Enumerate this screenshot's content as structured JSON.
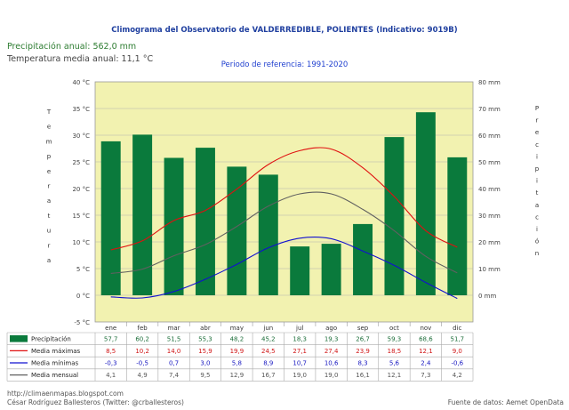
{
  "header": {
    "title": "Climograma del Observatorio de VALDERREDIBLE, POLIENTES (Indicativo: 9019B)",
    "annual_precip": "Precipitación anual: 562,0 mm",
    "annual_temp": "Temperatura media anual: 11,1 °C",
    "reference_period": "Periodo de referencia: 1991-2020"
  },
  "footer": {
    "blog": "http://climaenmapas.blogspot.com",
    "author": "César Rodríguez Ballesteros (Twitter: @crballesteros)",
    "source": "Fuente de datos: Aemet OpenData"
  },
  "colors": {
    "plot_bg": "#f2f2b0",
    "precip": "#0a7a3c",
    "tmax": "#e01010",
    "tmin": "#1010d0",
    "tmean": "#606060",
    "grid": "#b0b0b0"
  },
  "chart_data": {
    "type": "bar+line",
    "grid": true,
    "categories": [
      "ene",
      "feb",
      "mar",
      "abr",
      "may",
      "jun",
      "jul",
      "ago",
      "sep",
      "oct",
      "nov",
      "dic"
    ],
    "y_left": {
      "label": "Temperatura",
      "ylim": [
        -5,
        40
      ],
      "ticks": [
        "-5 °C",
        "0 °C",
        "5 °C",
        "10 °C",
        "15 °C",
        "20 °C",
        "25 °C",
        "30 °C",
        "35 °C",
        "40 °C"
      ]
    },
    "y_right": {
      "label": "Precipitación",
      "ylim": [
        -10,
        80
      ],
      "ticks": [
        "0 mm",
        "10 mm",
        "20 mm",
        "30 mm",
        "40 mm",
        "50 mm",
        "60 mm",
        "70 mm",
        "80 mm"
      ]
    },
    "series": [
      {
        "name": "Precipitación",
        "type": "bar",
        "axis": "right",
        "values": [
          57.7,
          60.2,
          51.5,
          55.3,
          48.2,
          45.2,
          18.3,
          19.3,
          26.7,
          59.3,
          68.6,
          51.7
        ],
        "labels": [
          "57,7",
          "60,2",
          "51,5",
          "55,3",
          "48,2",
          "45,2",
          "18,3",
          "19,3",
          "26,7",
          "59,3",
          "68,6",
          "51,7"
        ]
      },
      {
        "name": "Media máximas",
        "type": "line",
        "axis": "left",
        "values": [
          8.5,
          10.2,
          14.0,
          15.9,
          19.9,
          24.5,
          27.1,
          27.4,
          23.9,
          18.5,
          12.1,
          9.0
        ],
        "labels": [
          "8,5",
          "10,2",
          "14,0",
          "15,9",
          "19,9",
          "24,5",
          "27,1",
          "27,4",
          "23,9",
          "18,5",
          "12,1",
          "9,0"
        ]
      },
      {
        "name": "Media mínimas",
        "type": "line",
        "axis": "left",
        "values": [
          -0.3,
          -0.5,
          0.7,
          3.0,
          5.8,
          8.9,
          10.7,
          10.6,
          8.3,
          5.6,
          2.4,
          -0.6
        ],
        "labels": [
          "-0,3",
          "-0,5",
          "0,7",
          "3,0",
          "5,8",
          "8,9",
          "10,7",
          "10,6",
          "8,3",
          "5,6",
          "2,4",
          "-0,6"
        ]
      },
      {
        "name": "Media mensual",
        "type": "line",
        "axis": "left",
        "values": [
          4.1,
          4.9,
          7.4,
          9.5,
          12.9,
          16.7,
          19.0,
          19.0,
          16.1,
          12.1,
          7.3,
          4.2
        ],
        "labels": [
          "4,1",
          "4,9",
          "7,4",
          "9,5",
          "12,9",
          "16,7",
          "19,0",
          "19,0",
          "16,1",
          "12,1",
          "7,3",
          "4,2"
        ]
      }
    ]
  }
}
